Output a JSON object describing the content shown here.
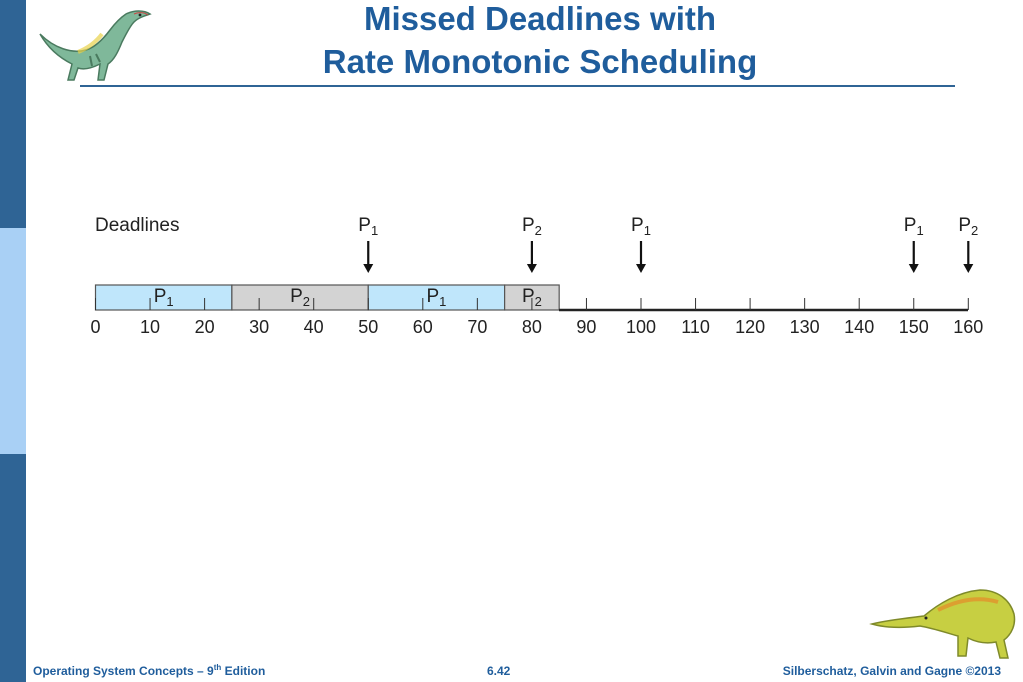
{
  "slide": {
    "title_line1": "Missed Deadlines with",
    "title_line2": "Rate Monotonic Scheduling",
    "footer_left": "Operating System Concepts – 9",
    "footer_left_sup": "th",
    "footer_left_suffix": " Edition",
    "footer_center": "6.42",
    "footer_right": "Silberschatz, Galvin and Gagne ©2013"
  },
  "timeline": {
    "deadlines_label": "Deadlines",
    "deadlines": [
      {
        "time": 50,
        "proc": "P",
        "sub": "1"
      },
      {
        "time": 80,
        "proc": "P",
        "sub": "2"
      },
      {
        "time": 100,
        "proc": "P",
        "sub": "1"
      },
      {
        "time": 150,
        "proc": "P",
        "sub": "1"
      },
      {
        "time": 160,
        "proc": "P",
        "sub": "2"
      }
    ],
    "segments": [
      {
        "start": 0,
        "end": 25,
        "proc": "P",
        "sub": "1",
        "color": "#bfe6fb"
      },
      {
        "start": 25,
        "end": 50,
        "proc": "P",
        "sub": "2",
        "color": "#d3d3d3"
      },
      {
        "start": 50,
        "end": 75,
        "proc": "P",
        "sub": "1",
        "color": "#bfe6fb"
      },
      {
        "start": 75,
        "end": 85,
        "proc": "P",
        "sub": "2",
        "color": "#d3d3d3"
      }
    ],
    "ticks": [
      0,
      10,
      20,
      30,
      40,
      50,
      60,
      70,
      80,
      90,
      100,
      110,
      120,
      130,
      140,
      150,
      160
    ]
  }
}
